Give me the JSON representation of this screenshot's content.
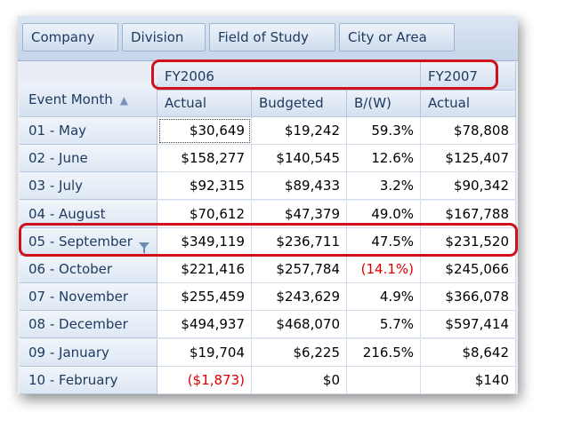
{
  "filter_fields": [
    "Company",
    "Division",
    "Field of Study",
    "City or Area"
  ],
  "column_groups": [
    "FY2006",
    "FY2007"
  ],
  "row_header_label": "Event Month",
  "row_header_sort_icon": "sort-up-icon",
  "measures": [
    "Actual",
    "Budgeted",
    "B/(W)",
    "Actual"
  ],
  "rows": [
    {
      "month": "01 - May",
      "cells": [
        "$30,649",
        "$19,242",
        "59.3%",
        "$78,808"
      ]
    },
    {
      "month": "02 - June",
      "cells": [
        "$158,277",
        "$140,545",
        "12.6%",
        "$125,407"
      ]
    },
    {
      "month": "03 - July",
      "cells": [
        "$92,315",
        "$89,433",
        "3.2%",
        "$90,342"
      ]
    },
    {
      "month": "04 - August",
      "cells": [
        "$70,612",
        "$47,379",
        "49.0%",
        "$167,788"
      ]
    },
    {
      "month": "05 - September",
      "cells": [
        "$349,119",
        "$236,711",
        "47.5%",
        "$231,520"
      ]
    },
    {
      "month": "06 - October",
      "cells": [
        "$221,416",
        "$257,784",
        "(14.1%)",
        "$245,066"
      ]
    },
    {
      "month": "07 - November",
      "cells": [
        "$255,459",
        "$243,629",
        "4.9%",
        "$366,078"
      ]
    },
    {
      "month": "08 - December",
      "cells": [
        "$494,937",
        "$468,070",
        "5.7%",
        "$597,414"
      ]
    },
    {
      "month": "09 - January",
      "cells": [
        "$19,704",
        "$6,225",
        "216.5%",
        "$8,642"
      ]
    },
    {
      "month": "10 - February",
      "cells": [
        "($1,873)",
        "$0",
        "",
        "$140"
      ]
    }
  ],
  "negative_color": "#e00000",
  "highlight_color": "#d0101a"
}
